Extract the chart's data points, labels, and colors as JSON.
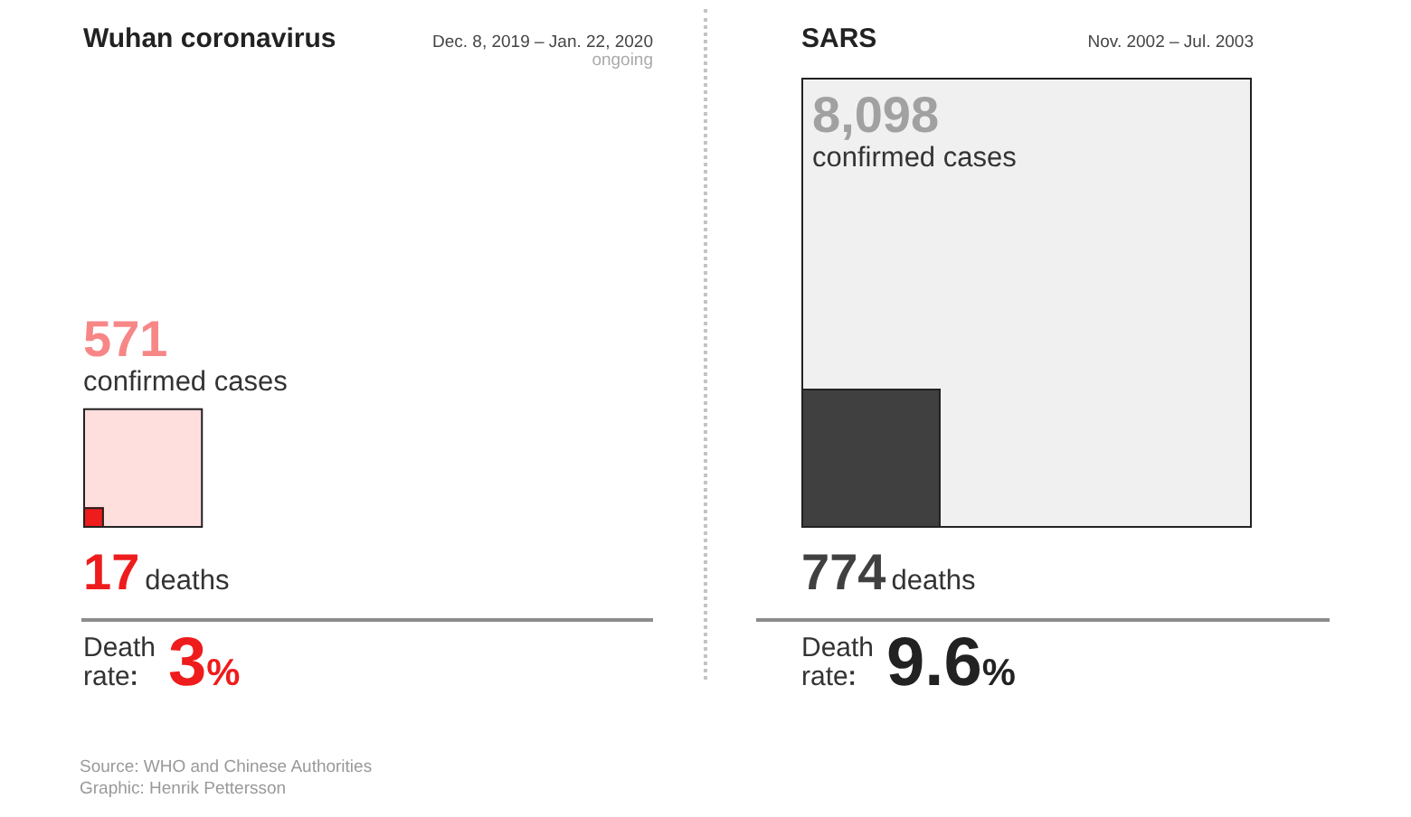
{
  "chart_data": [
    {
      "type": "other",
      "title": "Wuhan coronavirus",
      "subtitle": "Dec. 8, 2019 – Jan. 22, 2020\nongoing",
      "categories": [
        "confirmed cases",
        "deaths",
        "Death rate"
      ],
      "values": [
        571,
        17,
        3
      ],
      "value_labels": [
        "571",
        "17",
        "3%"
      ],
      "colors": [
        "#ffdede",
        "#ee1c1c",
        "#ee1c1c"
      ],
      "annotations": [
        "Source: WHO and Chinese Authorities",
        "Graphic: Henrik Pettersson"
      ]
    },
    {
      "type": "other",
      "title": "SARS",
      "subtitle": "Nov. 2002 – Jul. 2003",
      "categories": [
        "confirmed cases",
        "deaths",
        "Death rate"
      ],
      "values": [
        8098,
        774,
        9.6
      ],
      "value_labels": [
        "8,098",
        "774",
        "9.6%"
      ],
      "colors": [
        "#f0f0f0",
        "#404040",
        "#222222"
      ]
    }
  ]
}
